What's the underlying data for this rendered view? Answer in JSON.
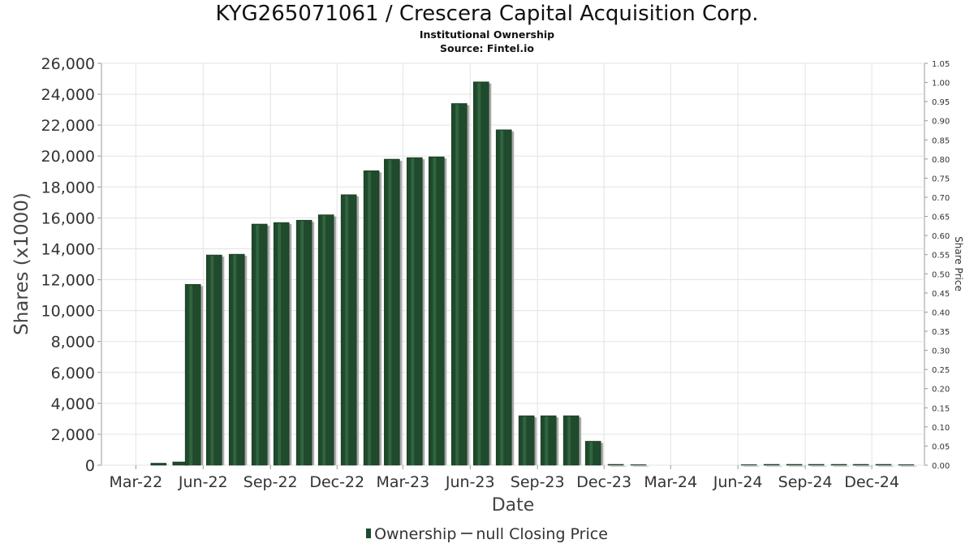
{
  "chart_data": {
    "type": "bar",
    "title": "KYG265071061 / Crescera Capital Acquisition Corp.",
    "subtitle": "Institutional Ownership",
    "source": "Source: Fintel.io",
    "xlabel": "Date",
    "ylabel": "Shares (x1000)",
    "y2label": "Share Price",
    "ylim": [
      0,
      26000
    ],
    "y2lim": [
      0,
      1.05
    ],
    "yticks": [
      "0",
      "2,000",
      "4,000",
      "6,000",
      "8,000",
      "10,000",
      "12,000",
      "14,000",
      "16,000",
      "18,000",
      "20,000",
      "22,000",
      "24,000",
      "26,000"
    ],
    "y2ticks": [
      "0.00",
      "0.05",
      "0.10",
      "0.15",
      "0.20",
      "0.25",
      "0.30",
      "0.35",
      "0.40",
      "0.45",
      "0.50",
      "0.55",
      "0.60",
      "0.65",
      "0.70",
      "0.75",
      "0.80",
      "0.85",
      "0.90",
      "0.95",
      "1.00",
      "1.05"
    ],
    "xticks": [
      "Mar-22",
      "Jun-22",
      "Sep-22",
      "Dec-22",
      "Mar-23",
      "Jun-23",
      "Sep-23",
      "Dec-23",
      "Mar-24",
      "Jun-24",
      "Sep-24",
      "Dec-24"
    ],
    "grid": true,
    "legend_position": "bottom-center",
    "series": [
      {
        "name": "Ownership",
        "color": "#1f4a2c",
        "x": [
          "2022-04-15",
          "2022-05-15",
          "2022-06-01",
          "2022-06-30",
          "2022-07-31",
          "2022-08-31",
          "2022-09-30",
          "2022-10-31",
          "2022-11-30",
          "2022-12-31",
          "2023-01-31",
          "2023-02-28",
          "2023-03-31",
          "2023-04-30",
          "2023-05-31",
          "2023-06-30",
          "2023-07-31",
          "2023-08-31",
          "2023-09-30",
          "2023-10-31",
          "2023-11-30",
          "2023-12-31",
          "2024-01-31",
          "2024-06-30",
          "2024-07-31",
          "2024-08-31",
          "2024-09-30",
          "2024-10-31",
          "2024-11-30",
          "2024-12-31",
          "2025-01-31"
        ],
        "values": [
          130,
          210,
          11700,
          13600,
          13650,
          15600,
          15700,
          15850,
          16200,
          17500,
          19050,
          19800,
          19900,
          19950,
          23400,
          24800,
          21700,
          3200,
          3200,
          3200,
          1550,
          30,
          0,
          0,
          10,
          10,
          10,
          10,
          10,
          10,
          0
        ]
      }
    ],
    "legend": {
      "ownership_label": "Ownership",
      "price_label": "null Closing Price"
    }
  }
}
